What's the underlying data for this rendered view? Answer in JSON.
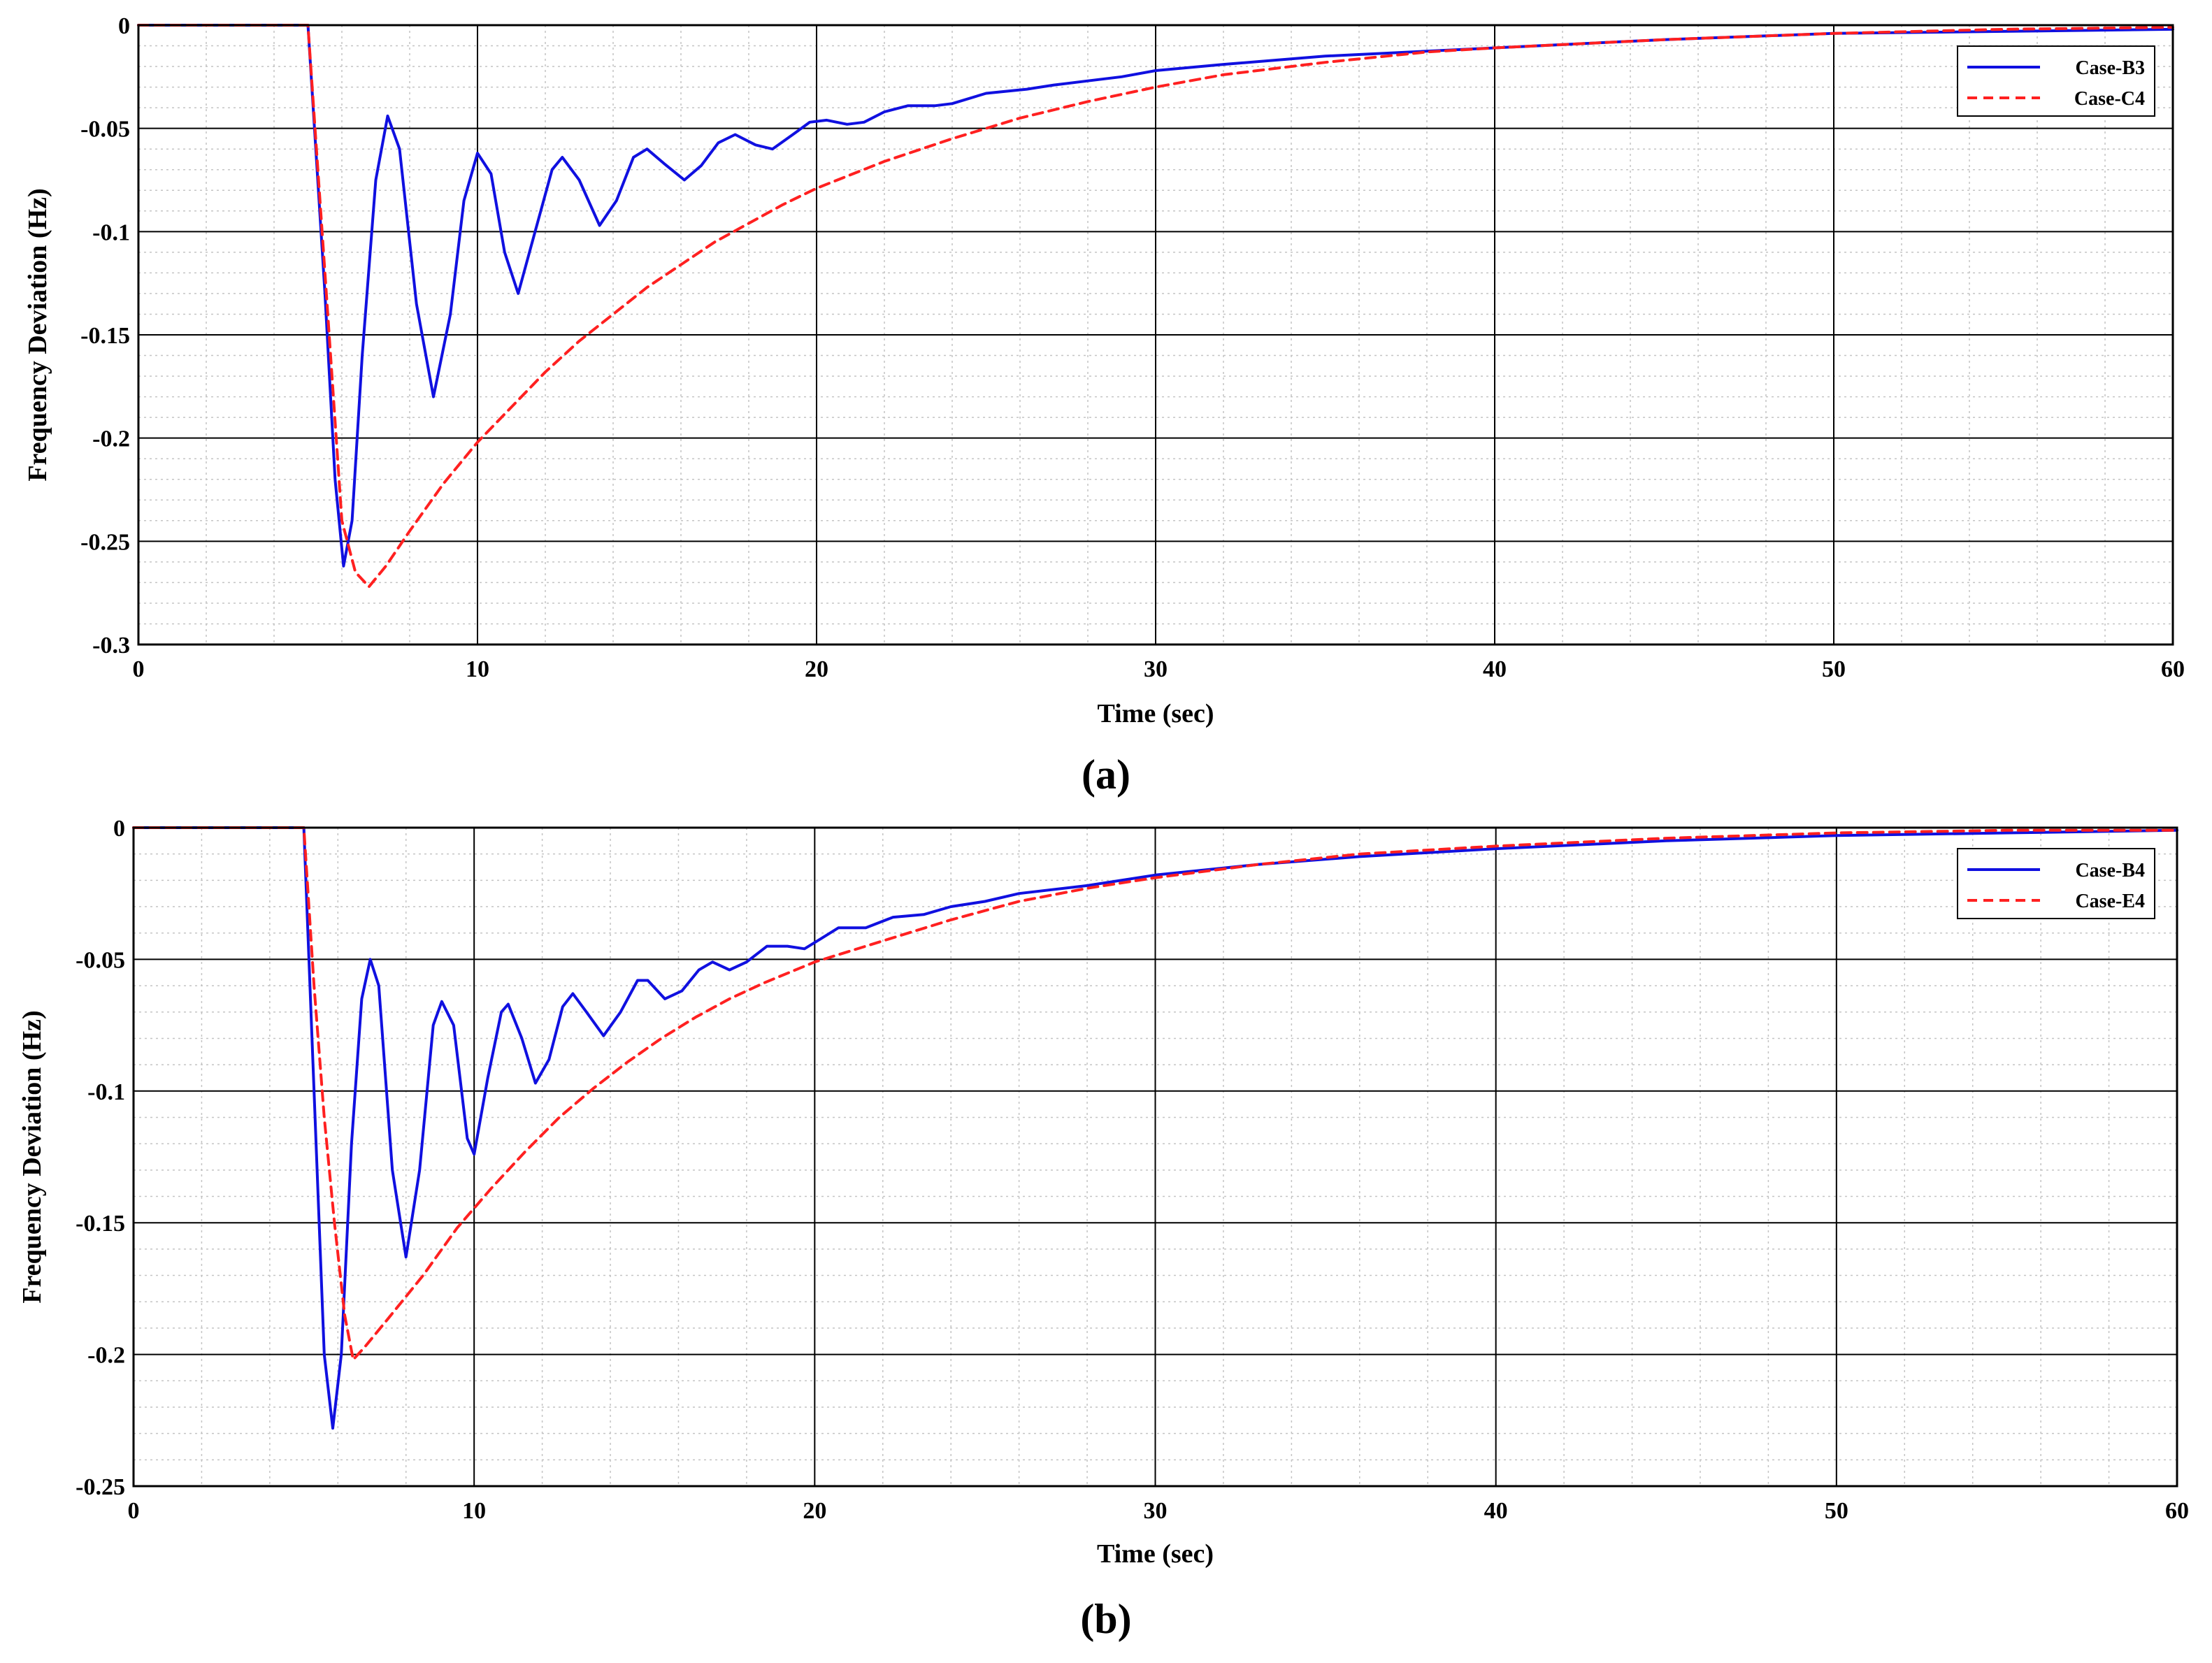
{
  "chart_data": [
    {
      "type": "line",
      "caption": "(a)",
      "xlabel": "Time (sec)",
      "ylabel": "Frequency Deviation (Hz)",
      "xlim": [
        0,
        60
      ],
      "ylim": [
        -0.3,
        0
      ],
      "xticks": [
        0,
        10,
        20,
        30,
        40,
        50,
        60
      ],
      "xtick_labels": [
        "0",
        "10",
        "20",
        "30",
        "40",
        "50",
        "60"
      ],
      "yticks": [
        0,
        -0.05,
        -0.1,
        -0.15,
        -0.2,
        -0.25,
        -0.3
      ],
      "ytick_labels": [
        "0",
        "-0.05",
        "-0.1",
        "-0.15",
        "-0.2",
        "-0.25",
        "-0.3"
      ],
      "grid": true,
      "minor_grid": true,
      "legend_position": "top-right",
      "series": [
        {
          "name": "Case-B3",
          "color": "#1010e0",
          "style": "solid",
          "points": [
            [
              0,
              0
            ],
            [
              5,
              0
            ],
            [
              5.5,
              -0.13
            ],
            [
              5.8,
              -0.22
            ],
            [
              6.05,
              -0.262
            ],
            [
              6.3,
              -0.24
            ],
            [
              6.6,
              -0.16
            ],
            [
              7.0,
              -0.075
            ],
            [
              7.35,
              -0.044
            ],
            [
              7.7,
              -0.06
            ],
            [
              8.2,
              -0.135
            ],
            [
              8.7,
              -0.18
            ],
            [
              9.2,
              -0.14
            ],
            [
              9.6,
              -0.085
            ],
            [
              10.0,
              -0.062
            ],
            [
              10.4,
              -0.072
            ],
            [
              10.8,
              -0.11
            ],
            [
              11.2,
              -0.13
            ],
            [
              11.7,
              -0.1
            ],
            [
              12.2,
              -0.07
            ],
            [
              12.5,
              -0.064
            ],
            [
              13.0,
              -0.075
            ],
            [
              13.6,
              -0.097
            ],
            [
              14.1,
              -0.085
            ],
            [
              14.6,
              -0.064
            ],
            [
              15.0,
              -0.06
            ],
            [
              15.5,
              -0.067
            ],
            [
              16.1,
              -0.075
            ],
            [
              16.6,
              -0.068
            ],
            [
              17.1,
              -0.057
            ],
            [
              17.6,
              -0.053
            ],
            [
              18.2,
              -0.058
            ],
            [
              18.7,
              -0.06
            ],
            [
              19.3,
              -0.053
            ],
            [
              19.8,
              -0.047
            ],
            [
              20.3,
              -0.046
            ],
            [
              20.9,
              -0.048
            ],
            [
              21.4,
              -0.047
            ],
            [
              22.0,
              -0.042
            ],
            [
              22.7,
              -0.039
            ],
            [
              23.5,
              -0.039
            ],
            [
              24.0,
              -0.038
            ],
            [
              25.0,
              -0.033
            ],
            [
              26.2,
              -0.031
            ],
            [
              27.0,
              -0.029
            ],
            [
              28.0,
              -0.027
            ],
            [
              29.0,
              -0.025
            ],
            [
              30.0,
              -0.022
            ],
            [
              32.0,
              -0.019
            ],
            [
              35.0,
              -0.015
            ],
            [
              40.0,
              -0.011
            ],
            [
              45.0,
              -0.007
            ],
            [
              50.0,
              -0.004
            ],
            [
              55.0,
              -0.003
            ],
            [
              60.0,
              -0.002
            ]
          ]
        },
        {
          "name": "Case-C4",
          "color": "#ff2020",
          "style": "dashed",
          "points": [
            [
              0,
              0
            ],
            [
              5,
              0
            ],
            [
              5.5,
              -0.12
            ],
            [
              6.0,
              -0.24
            ],
            [
              6.4,
              -0.265
            ],
            [
              6.8,
              -0.272
            ],
            [
              7.3,
              -0.262
            ],
            [
              8.0,
              -0.245
            ],
            [
              9.0,
              -0.222
            ],
            [
              10.0,
              -0.202
            ],
            [
              11.0,
              -0.185
            ],
            [
              12.0,
              -0.168
            ],
            [
              13.0,
              -0.153
            ],
            [
              14.0,
              -0.14
            ],
            [
              15.0,
              -0.127
            ],
            [
              16.0,
              -0.116
            ],
            [
              17.0,
              -0.105
            ],
            [
              18.0,
              -0.096
            ],
            [
              19.0,
              -0.087
            ],
            [
              20.0,
              -0.079
            ],
            [
              22.0,
              -0.066
            ],
            [
              24.0,
              -0.055
            ],
            [
              26.0,
              -0.045
            ],
            [
              28.0,
              -0.037
            ],
            [
              30.0,
              -0.03
            ],
            [
              32.0,
              -0.024
            ],
            [
              35.0,
              -0.018
            ],
            [
              38.0,
              -0.013
            ],
            [
              40.0,
              -0.011
            ],
            [
              45.0,
              -0.007
            ],
            [
              50.0,
              -0.004
            ],
            [
              55.0,
              -0.002
            ],
            [
              60.0,
              -0.001
            ]
          ]
        }
      ]
    },
    {
      "type": "line",
      "caption": "(b)",
      "xlabel": "Time (sec)",
      "ylabel": "Frequency Deviation (Hz)",
      "xlim": [
        0,
        60
      ],
      "ylim": [
        -0.25,
        0
      ],
      "xticks": [
        0,
        10,
        20,
        30,
        40,
        50,
        60
      ],
      "xtick_labels": [
        "0",
        "10",
        "20",
        "30",
        "40",
        "50",
        "60"
      ],
      "yticks": [
        0,
        -0.05,
        -0.1,
        -0.15,
        -0.2,
        -0.25
      ],
      "ytick_labels": [
        "0",
        "-0.05",
        "-0.1",
        "-0.15",
        "-0.2",
        "-0.25"
      ],
      "grid": true,
      "minor_grid": true,
      "legend_position": "top-right",
      "series": [
        {
          "name": "Case-B4",
          "color": "#1010e0",
          "style": "solid",
          "points": [
            [
              0,
              0
            ],
            [
              5,
              0
            ],
            [
              5.3,
              -0.1
            ],
            [
              5.6,
              -0.2
            ],
            [
              5.85,
              -0.228
            ],
            [
              6.1,
              -0.2
            ],
            [
              6.4,
              -0.12
            ],
            [
              6.7,
              -0.065
            ],
            [
              6.95,
              -0.05
            ],
            [
              7.2,
              -0.06
            ],
            [
              7.6,
              -0.13
            ],
            [
              8.0,
              -0.163
            ],
            [
              8.4,
              -0.13
            ],
            [
              8.8,
              -0.075
            ],
            [
              9.05,
              -0.066
            ],
            [
              9.4,
              -0.075
            ],
            [
              9.8,
              -0.118
            ],
            [
              10.0,
              -0.124
            ],
            [
              10.4,
              -0.095
            ],
            [
              10.8,
              -0.07
            ],
            [
              11.0,
              -0.067
            ],
            [
              11.4,
              -0.08
            ],
            [
              11.8,
              -0.097
            ],
            [
              12.2,
              -0.088
            ],
            [
              12.6,
              -0.068
            ],
            [
              12.9,
              -0.063
            ],
            [
              13.3,
              -0.07
            ],
            [
              13.8,
              -0.079
            ],
            [
              14.3,
              -0.07
            ],
            [
              14.8,
              -0.058
            ],
            [
              15.1,
              -0.058
            ],
            [
              15.6,
              -0.065
            ],
            [
              16.1,
              -0.062
            ],
            [
              16.6,
              -0.054
            ],
            [
              17.0,
              -0.051
            ],
            [
              17.5,
              -0.054
            ],
            [
              18.0,
              -0.051
            ],
            [
              18.6,
              -0.045
            ],
            [
              19.2,
              -0.045
            ],
            [
              19.7,
              -0.046
            ],
            [
              20.2,
              -0.042
            ],
            [
              20.7,
              -0.038
            ],
            [
              21.5,
              -0.038
            ],
            [
              22.3,
              -0.034
            ],
            [
              23.2,
              -0.033
            ],
            [
              24.0,
              -0.03
            ],
            [
              25.0,
              -0.028
            ],
            [
              26.0,
              -0.025
            ],
            [
              28.0,
              -0.022
            ],
            [
              30.0,
              -0.018
            ],
            [
              33.0,
              -0.014
            ],
            [
              36.0,
              -0.011
            ],
            [
              40.0,
              -0.008
            ],
            [
              45.0,
              -0.005
            ],
            [
              50.0,
              -0.003
            ],
            [
              55.0,
              -0.002
            ],
            [
              60.0,
              -0.001
            ]
          ]
        },
        {
          "name": "Case-E4",
          "color": "#ff2020",
          "style": "dashed",
          "points": [
            [
              0,
              0
            ],
            [
              5,
              0
            ],
            [
              5.3,
              -0.06
            ],
            [
              5.6,
              -0.11
            ],
            [
              5.9,
              -0.15
            ],
            [
              6.2,
              -0.185
            ],
            [
              6.45,
              -0.202
            ],
            [
              6.8,
              -0.197
            ],
            [
              7.5,
              -0.186
            ],
            [
              8.5,
              -0.17
            ],
            [
              9.5,
              -0.152
            ],
            [
              10.5,
              -0.137
            ],
            [
              11.5,
              -0.123
            ],
            [
              12.5,
              -0.11
            ],
            [
              13.5,
              -0.099
            ],
            [
              14.5,
              -0.089
            ],
            [
              15.5,
              -0.08
            ],
            [
              16.5,
              -0.072
            ],
            [
              17.5,
              -0.065
            ],
            [
              18.5,
              -0.059
            ],
            [
              20.0,
              -0.051
            ],
            [
              22.0,
              -0.043
            ],
            [
              24.0,
              -0.035
            ],
            [
              26.0,
              -0.028
            ],
            [
              28.0,
              -0.023
            ],
            [
              30.0,
              -0.019
            ],
            [
              33.0,
              -0.014
            ],
            [
              36.0,
              -0.01
            ],
            [
              40.0,
              -0.007
            ],
            [
              45.0,
              -0.004
            ],
            [
              50.0,
              -0.002
            ],
            [
              55.0,
              -0.001
            ],
            [
              60.0,
              -0.001
            ]
          ]
        }
      ]
    }
  ]
}
